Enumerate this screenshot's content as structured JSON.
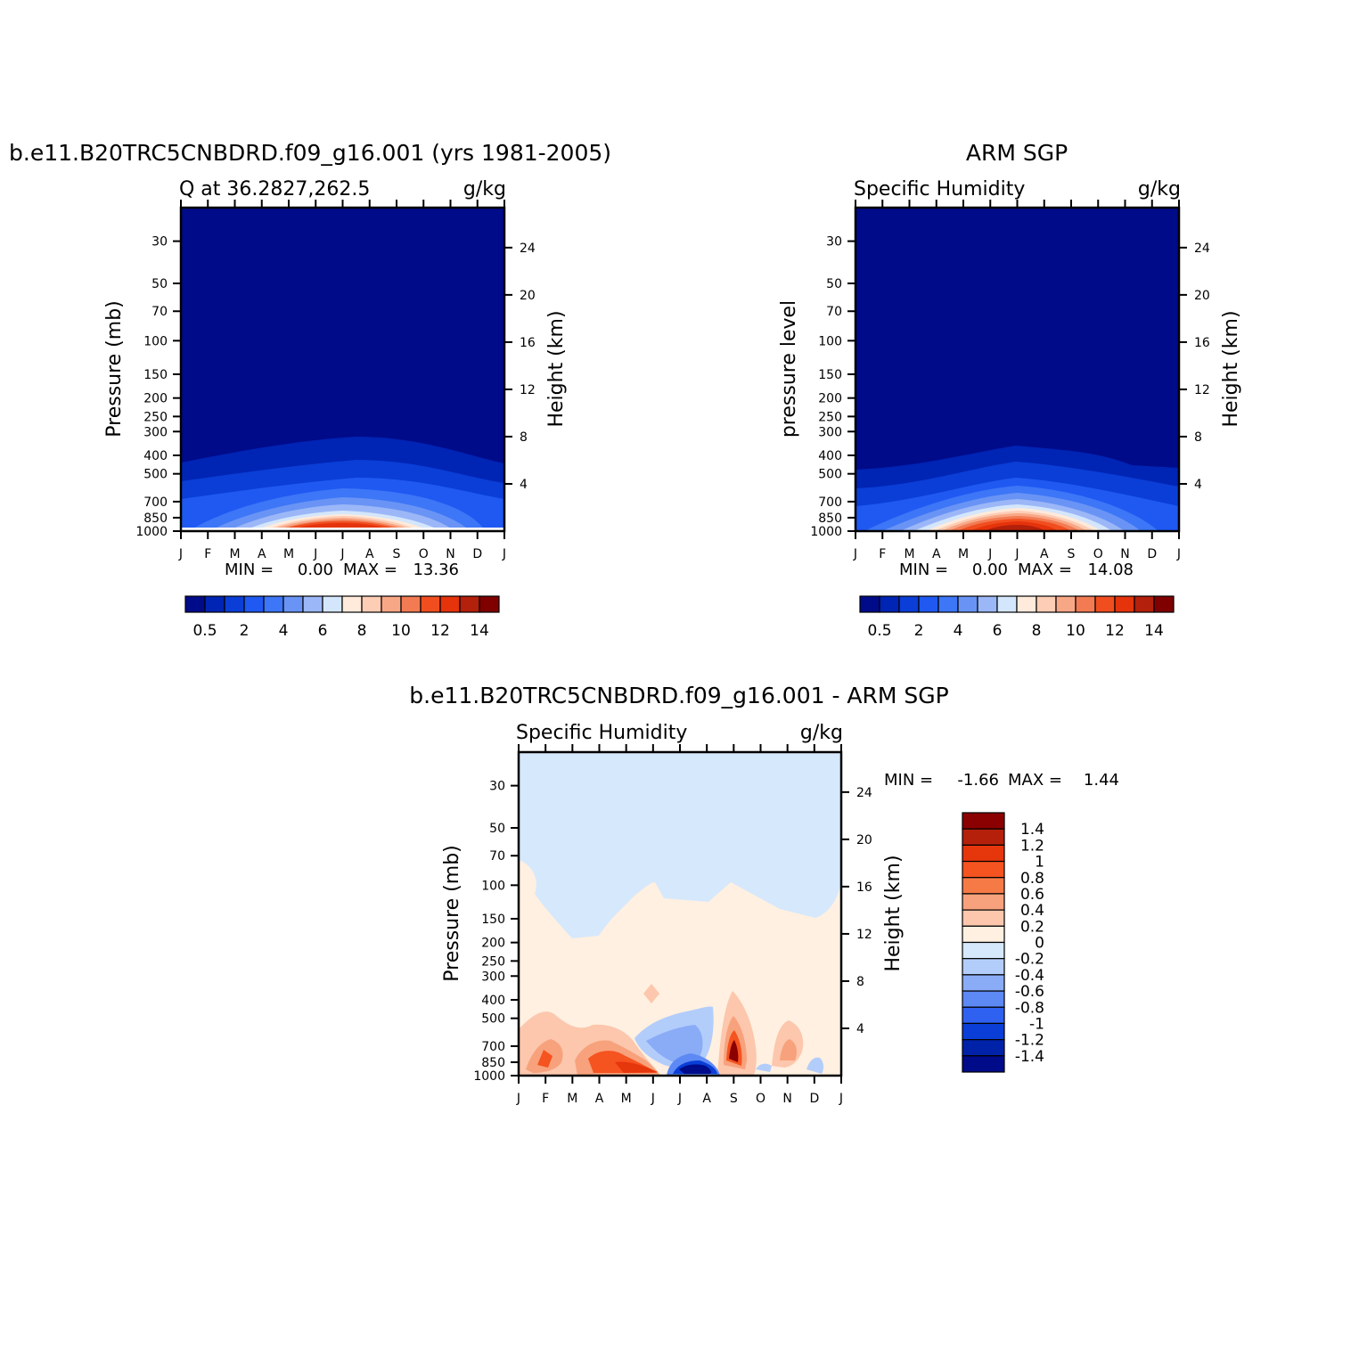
{
  "months": [
    "J",
    "F",
    "M",
    "A",
    "M",
    "J",
    "J",
    "A",
    "S",
    "O",
    "N",
    "D",
    "J"
  ],
  "pressure_ticks": [
    30,
    50,
    70,
    100,
    150,
    200,
    250,
    300,
    400,
    500,
    700,
    850,
    1000
  ],
  "height_ticks": [
    4,
    8,
    12,
    16,
    20,
    24
  ],
  "chart_data": [
    {
      "type": "heatmap",
      "title": "b.e11.B20TRC5CNBDRD.f09_g16.001 (yrs 1981-2005)",
      "subtitle": "Q at 36.2827,262.5",
      "units": "g/kg",
      "ylabel": "Pressure (mb)",
      "ylabel_right": "Height (km)",
      "ylim_pressure": [
        1000,
        20
      ],
      "min_label": "MIN =",
      "min_value": "0.00",
      "max_label": "MAX =",
      "max_value": "13.36",
      "colorbar_labels": [
        "0.5",
        "2",
        "4",
        "6",
        "8",
        "10",
        "12",
        "14"
      ],
      "colorbar_levels": [
        0.5,
        1,
        2,
        3,
        4,
        5,
        6,
        7,
        8,
        9,
        10,
        11,
        12,
        13,
        14
      ],
      "colorbar_colors": [
        "#000b8a",
        "#0024b4",
        "#0a3ed6",
        "#1f59f2",
        "#3d76f6",
        "#6994f5",
        "#9cb7f7",
        "#d4e6fb",
        "#ffeadb",
        "#fdcdb5",
        "#f8a786",
        "#f27b53",
        "#f14e20",
        "#e5330b",
        "#b3200b",
        "#800000"
      ]
    },
    {
      "type": "heatmap",
      "title": "ARM SGP",
      "subtitle": "Specific Humidity",
      "units": "g/kg",
      "ylabel": "pressure level",
      "ylabel_right": "Height (km)",
      "ylim_pressure": [
        1000,
        20
      ],
      "min_label": "MIN =",
      "min_value": "0.00",
      "max_label": "MAX =",
      "max_value": "14.08",
      "colorbar_labels": [
        "0.5",
        "2",
        "4",
        "6",
        "8",
        "10",
        "12",
        "14"
      ],
      "colorbar_levels": [
        0.5,
        1,
        2,
        3,
        4,
        5,
        6,
        7,
        8,
        9,
        10,
        11,
        12,
        13,
        14
      ],
      "colorbar_colors": [
        "#000b8a",
        "#0024b4",
        "#0a3ed6",
        "#1f59f2",
        "#3d76f6",
        "#6994f5",
        "#9cb7f7",
        "#d4e6fb",
        "#ffeadb",
        "#fdcdb5",
        "#f8a786",
        "#f27b53",
        "#f14e20",
        "#e5330b",
        "#b3200b",
        "#800000"
      ]
    },
    {
      "type": "heatmap",
      "title": "b.e11.B20TRC5CNBDRD.f09_g16.001 - ARM SGP",
      "subtitle": "Specific Humidity",
      "units": "g/kg",
      "ylabel": "Pressure (mb)",
      "ylabel_right": "Height (km)",
      "ylim_pressure": [
        1000,
        20
      ],
      "min_label": "MIN =",
      "min_value": "-1.66",
      "max_label": "MAX =",
      "max_value": "1.44",
      "colorbar_labels": [
        "1.4",
        "1.2",
        "1",
        "0.8",
        "0.6",
        "0.4",
        "0.2",
        "0",
        "-0.2",
        "-0.4",
        "-0.6",
        "-0.8",
        "-1",
        "-1.2",
        "-1.4"
      ],
      "colorbar_levels": [
        1.4,
        1.2,
        1,
        0.8,
        0.6,
        0.4,
        0.2,
        0,
        -0.2,
        -0.4,
        -0.6,
        -0.8,
        -1,
        -1.2,
        -1.4
      ],
      "colorbar_colors": [
        "#8b0000",
        "#b5200b",
        "#e6360c",
        "#f55320",
        "#f67a46",
        "#f7a27c",
        "#fcc7ad",
        "#fff0e1",
        "#d6e8fc",
        "#b3cdfb",
        "#8aacf7",
        "#5d89f4",
        "#2f61f1",
        "#0a3ed6",
        "#0022a8",
        "#000b8a"
      ]
    }
  ]
}
